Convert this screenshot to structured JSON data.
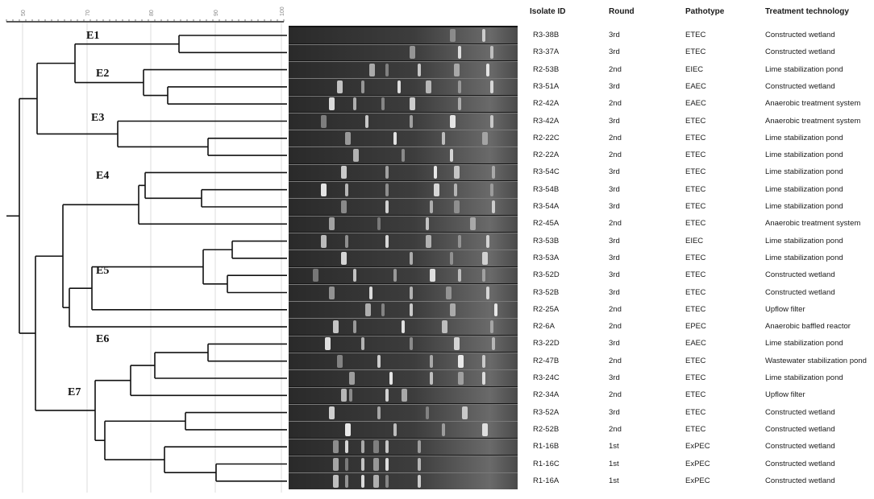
{
  "headers": {
    "isolate": "Isolate ID",
    "round": "Round",
    "pathotype": "Pathotype",
    "treatment": "Treatment technology"
  },
  "scale": {
    "ticks": [
      "50",
      "70",
      "80",
      "90",
      "100"
    ]
  },
  "clusters": [
    "E1",
    "E2",
    "E3",
    "E4",
    "E5",
    "E6",
    "E7"
  ],
  "rows": [
    {
      "id": "R3-38B",
      "round": "3rd",
      "pathotype": "ETEC",
      "treatment": "Constructed wetland"
    },
    {
      "id": "R3-37A",
      "round": "3rd",
      "pathotype": "ETEC",
      "treatment": "Constructed wetland"
    },
    {
      "id": "R2-53B",
      "round": "2nd",
      "pathotype": "EIEC",
      "treatment": "Lime stabilization pond"
    },
    {
      "id": "R3-51A",
      "round": "3rd",
      "pathotype": "EAEC",
      "treatment": "Constructed wetland"
    },
    {
      "id": "R2-42A",
      "round": "2nd",
      "pathotype": "EAEC",
      "treatment": "Anaerobic treatment system"
    },
    {
      "id": "R3-42A",
      "round": "3rd",
      "pathotype": "ETEC",
      "treatment": "Anaerobic treatment system"
    },
    {
      "id": "R2-22C",
      "round": "2nd",
      "pathotype": "ETEC",
      "treatment": "Lime stabilization pond"
    },
    {
      "id": "R2-22A",
      "round": "2nd",
      "pathotype": "ETEC",
      "treatment": "Lime stabilization pond"
    },
    {
      "id": "R3-54C",
      "round": "3rd",
      "pathotype": "ETEC",
      "treatment": "Lime stabilization pond"
    },
    {
      "id": "R3-54B",
      "round": "3rd",
      "pathotype": "ETEC",
      "treatment": "Lime stabilization pond"
    },
    {
      "id": "R3-54A",
      "round": "3rd",
      "pathotype": "ETEC",
      "treatment": "Lime stabilization pond"
    },
    {
      "id": "R2-45A",
      "round": "2nd",
      "pathotype": "ETEC",
      "treatment": "Anaerobic treatment system"
    },
    {
      "id": "R3-53B",
      "round": "3rd",
      "pathotype": "EIEC",
      "treatment": "Lime stabilization pond"
    },
    {
      "id": "R3-53A",
      "round": "3rd",
      "pathotype": "ETEC",
      "treatment": "Lime stabilization pond"
    },
    {
      "id": "R3-52D",
      "round": "3rd",
      "pathotype": "ETEC",
      "treatment": "Constructed wetland"
    },
    {
      "id": "R3-52B",
      "round": "3rd",
      "pathotype": "ETEC",
      "treatment": "Constructed wetland"
    },
    {
      "id": "R2-25A",
      "round": "2nd",
      "pathotype": "ETEC",
      "treatment": "Upflow filter"
    },
    {
      "id": "R2-6A",
      "round": "2nd",
      "pathotype": "EPEC",
      "treatment": "Anaerobic baffled reactor"
    },
    {
      "id": "R3-22D",
      "round": "3rd",
      "pathotype": "EAEC",
      "treatment": "Lime stabilization pond"
    },
    {
      "id": "R2-47B",
      "round": "2nd",
      "pathotype": "ETEC",
      "treatment": "Wastewater stabilization pond"
    },
    {
      "id": "R3-24C",
      "round": "3rd",
      "pathotype": "ETEC",
      "treatment": "Lime stabilization pond"
    },
    {
      "id": "R2-34A",
      "round": "2nd",
      "pathotype": "ETEC",
      "treatment": "Upflow filter"
    },
    {
      "id": "R3-52A",
      "round": "3rd",
      "pathotype": "ETEC",
      "treatment": "Constructed wetland"
    },
    {
      "id": "R2-52B",
      "round": "2nd",
      "pathotype": "ETEC",
      "treatment": "Constructed wetland"
    },
    {
      "id": "R1-16B",
      "round": "1st",
      "pathotype": "ExPEC",
      "treatment": "Constructed wetland"
    },
    {
      "id": "R1-16C",
      "round": "1st",
      "pathotype": "ExPEC",
      "treatment": "Constructed wetland"
    },
    {
      "id": "R1-16A",
      "round": "1st",
      "pathotype": "ExPEC",
      "treatment": "Constructed wetland"
    }
  ]
}
